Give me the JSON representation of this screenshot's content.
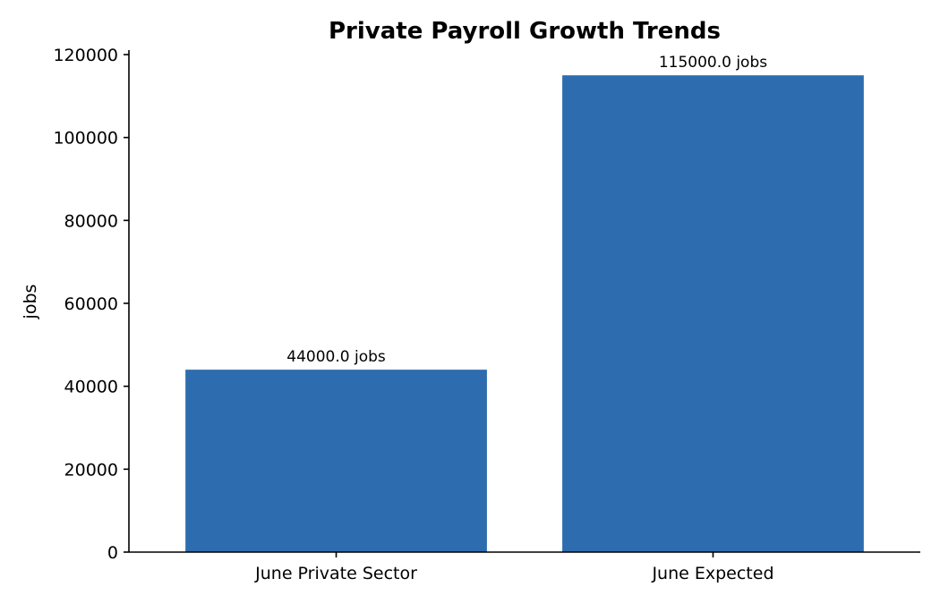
{
  "chart_data": {
    "type": "bar",
    "title": "Private Payroll Growth Trends",
    "xlabel": "",
    "ylabel": "jobs",
    "categories": [
      "June Private Sector",
      "June Expected"
    ],
    "values": [
      44000,
      115000
    ],
    "data_labels": [
      "44000.0 jobs",
      "115000.0 jobs"
    ],
    "ylim": [
      0,
      120000
    ],
    "yticks": [
      0,
      20000,
      40000,
      60000,
      80000,
      100000,
      120000
    ],
    "ytick_labels": [
      "0",
      "20000",
      "40000",
      "60000",
      "80000",
      "100000",
      "120000"
    ],
    "bar_color": "#2d6daf",
    "grid": false,
    "legend": "none"
  }
}
